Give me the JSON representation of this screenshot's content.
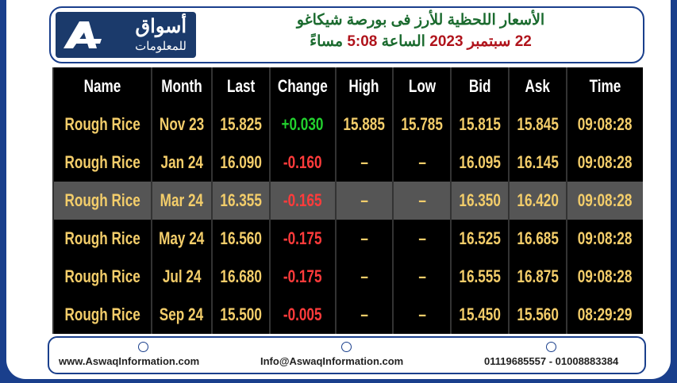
{
  "header": {
    "title": "الأسعار اللحظية للأرز فى بورصة شيكاغو",
    "date": "22 سبتمبر 2023",
    "time_word": "الساعة",
    "time": "5:08",
    "period": "مساءً"
  },
  "logo": {
    "name": "أسواق",
    "tagline": "للمعلومات"
  },
  "table": {
    "columns": [
      "Name",
      "Month",
      "Last",
      "Change",
      "High",
      "Low",
      "Bid",
      "Ask",
      "Time"
    ],
    "rows": [
      [
        "Rough Rice",
        "Nov 23",
        "15.825",
        "+0.030",
        "15.885",
        "15.785",
        "15.815",
        "15.845",
        "09:08:28"
      ],
      [
        "Rough Rice",
        "Jan 24",
        "16.090",
        "-0.160",
        "–",
        "–",
        "16.095",
        "16.145",
        "09:08:28"
      ],
      [
        "Rough Rice",
        "Mar 24",
        "16.355",
        "-0.165",
        "–",
        "–",
        "16.350",
        "16.420",
        "09:08:28"
      ],
      [
        "Rough Rice",
        "May 24",
        "16.560",
        "-0.175",
        "–",
        "–",
        "16.525",
        "16.685",
        "09:08:28"
      ],
      [
        "Rough Rice",
        "Jul 24",
        "16.680",
        "-0.175",
        "–",
        "–",
        "16.555",
        "16.875",
        "09:08:28"
      ],
      [
        "Rough Rice",
        "Sep 24",
        "15.500",
        "-0.005",
        "–",
        "–",
        "15.450",
        "15.560",
        "08:29:29"
      ]
    ]
  },
  "footer": {
    "website": "www.AswaqInformation.com",
    "email": "Info@AswaqInformation.com",
    "phones": "01119685557 - 01008883384"
  }
}
